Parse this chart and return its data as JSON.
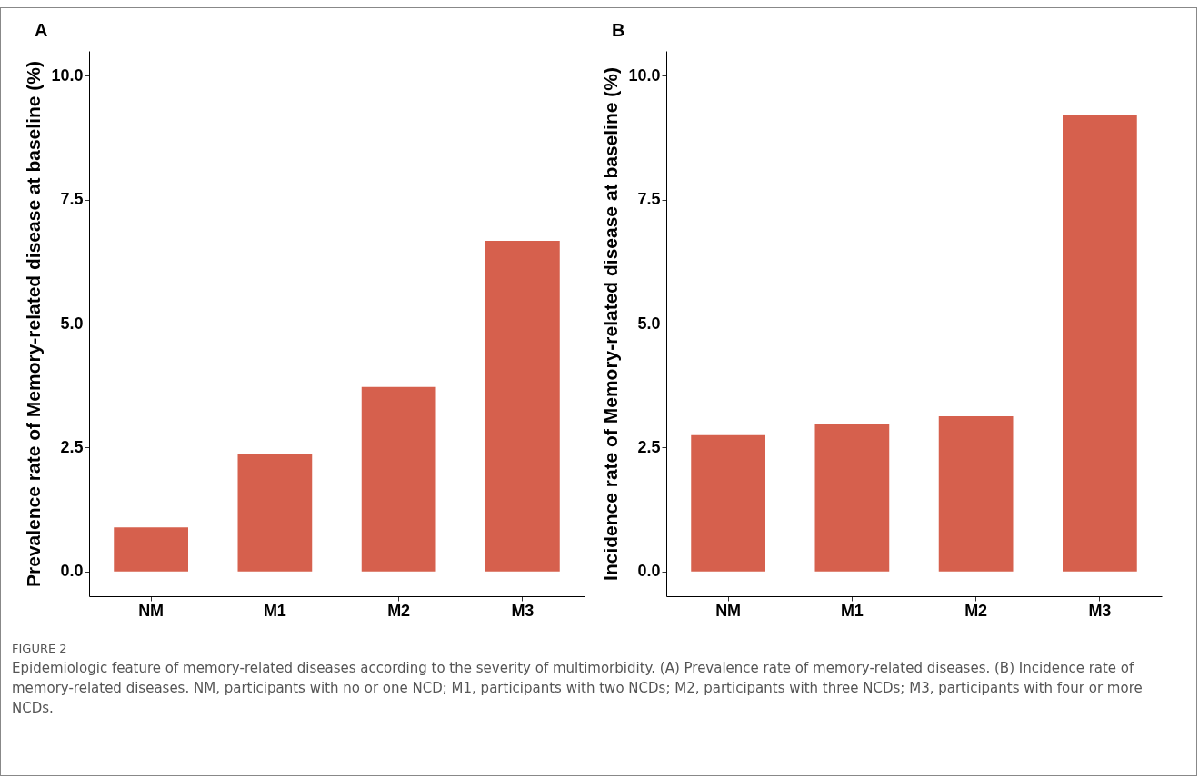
{
  "chart_data": [
    {
      "type": "bar",
      "title": "A",
      "ylabel": "Prevalence rate of Memory-related disease at baseline (%)",
      "categories": [
        "NM",
        "M1",
        "M2",
        "M3"
      ],
      "values": [
        0.89,
        2.37,
        3.72,
        6.67
      ],
      "color": "#d6604d",
      "ylim": [
        -0.5,
        10.5
      ],
      "yticks": [
        {
          "value": 0,
          "label": "0.0"
        },
        {
          "value": 2.5,
          "label": "2.5"
        },
        {
          "value": 5,
          "label": "5.0"
        },
        {
          "value": 7.5,
          "label": "7.5"
        },
        {
          "value": 10,
          "label": "10.0"
        }
      ],
      "annotations": [
        "FIGURE 2",
        "Epidemiologic feature of memory-related diseases according to the severity of multimorbidity. (A) Prevalence rate of memory-related diseases. (B) Incidence rate of memory-related diseases. NM, participants with no or one NCD; M1, participants with two NCDs; M2, participants with three NCDs; M3, participants with four or more NCDs."
      ]
    },
    {
      "type": "bar",
      "title": "B",
      "ylabel": "Incidence rate of Memory-related disease at baseline (%)",
      "categories": [
        "NM",
        "M1",
        "M2",
        "M3"
      ],
      "values": [
        2.75,
        2.97,
        3.13,
        9.2
      ],
      "color": "#d6604d",
      "ylim": [
        -0.5,
        10.5
      ],
      "yticks": [
        {
          "value": 0,
          "label": "0.0"
        },
        {
          "value": 2.5,
          "label": "2.5"
        },
        {
          "value": 5,
          "label": "5.0"
        },
        {
          "value": 7.5,
          "label": "7.5"
        },
        {
          "value": 10,
          "label": "10.0"
        }
      ]
    }
  ]
}
